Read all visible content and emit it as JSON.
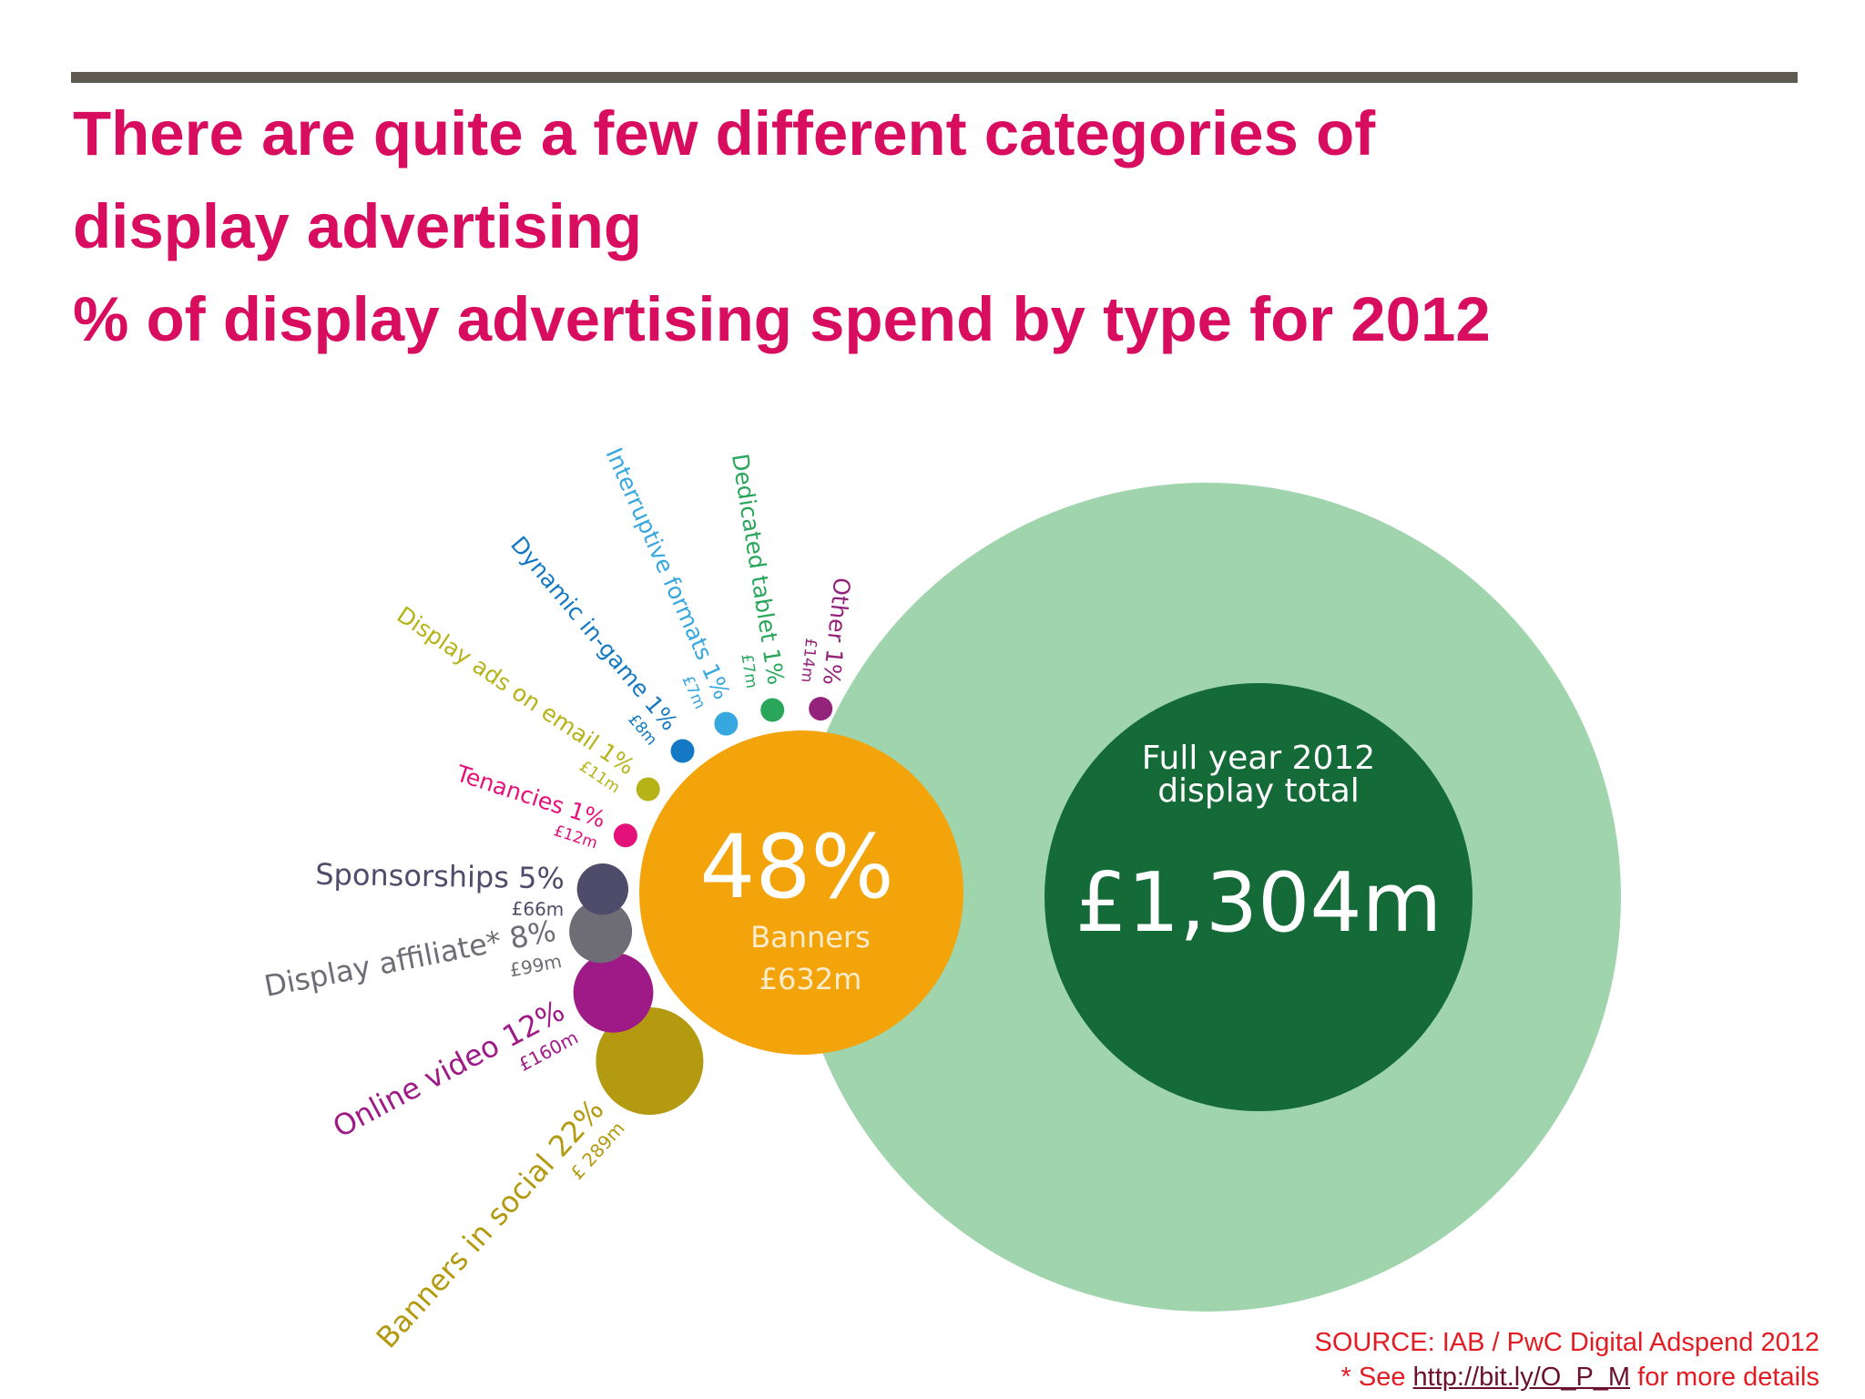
{
  "header": {
    "title_line1": "There are quite a few different categories of",
    "title_line2": "display advertising",
    "title_line3": "% of display advertising spend by type for 2012"
  },
  "chart_data": {
    "type": "bubble",
    "total": {
      "label_line1": "Full year 2012",
      "label_line2": "display total",
      "value_text": "£1,304m",
      "value": 1304,
      "ring_color": "#9fd4ad",
      "core_color": "#146b38"
    },
    "main": {
      "name": "Banners",
      "percent_text": "48%",
      "value_text": "£632m",
      "percent": 48,
      "value": 632,
      "color": "#f2a40a"
    },
    "categories": [
      {
        "name": "Banners in social",
        "percent_text": "22%",
        "value_text": "£ 289m",
        "percent": 22,
        "value": 289,
        "color": "#b39a10"
      },
      {
        "name": "Online video",
        "percent_text": "12%",
        "value_text": "£160m",
        "percent": 12,
        "value": 160,
        "color": "#9e1a87"
      },
      {
        "name": "Display affiliate*",
        "percent_text": "8%",
        "value_text": "£99m",
        "percent": 8,
        "value": 99,
        "color": "#6e6d75"
      },
      {
        "name": "Sponsorships",
        "percent_text": "5%",
        "value_text": "£66m",
        "percent": 5,
        "value": 66,
        "color": "#4f4c6b"
      },
      {
        "name": "Tenancies",
        "percent_text": "1%",
        "value_text": "£12m",
        "percent": 1,
        "value": 12,
        "color": "#e4117a"
      },
      {
        "name": "Display ads on email",
        "percent_text": "1%",
        "value_text": "£11m",
        "percent": 1,
        "value": 11,
        "color": "#b5b318"
      },
      {
        "name": "Dynamic in-game",
        "percent_text": "1%",
        "value_text": "£8m",
        "percent": 1,
        "value": 8,
        "color": "#1478c4"
      },
      {
        "name": "Interruptive formats",
        "percent_text": "1%",
        "value_text": "£7m",
        "percent": 1,
        "value": 7,
        "color": "#37a7df"
      },
      {
        "name": "Dedicated tablet",
        "percent_text": "1%",
        "value_text": "£7m",
        "percent": 1,
        "value": 7,
        "color": "#2aa65a"
      },
      {
        "name": "Other",
        "percent_text": "1%",
        "value_text": "£14m",
        "percent": 1,
        "value": 14,
        "color": "#94237b"
      }
    ]
  },
  "footer": {
    "source_text": "SOURCE: IAB / PwC Digital Adspend 2012",
    "note_prefix": "* See ",
    "note_link": "http://bit.ly/O_P_M",
    "note_suffix": " for more details"
  }
}
